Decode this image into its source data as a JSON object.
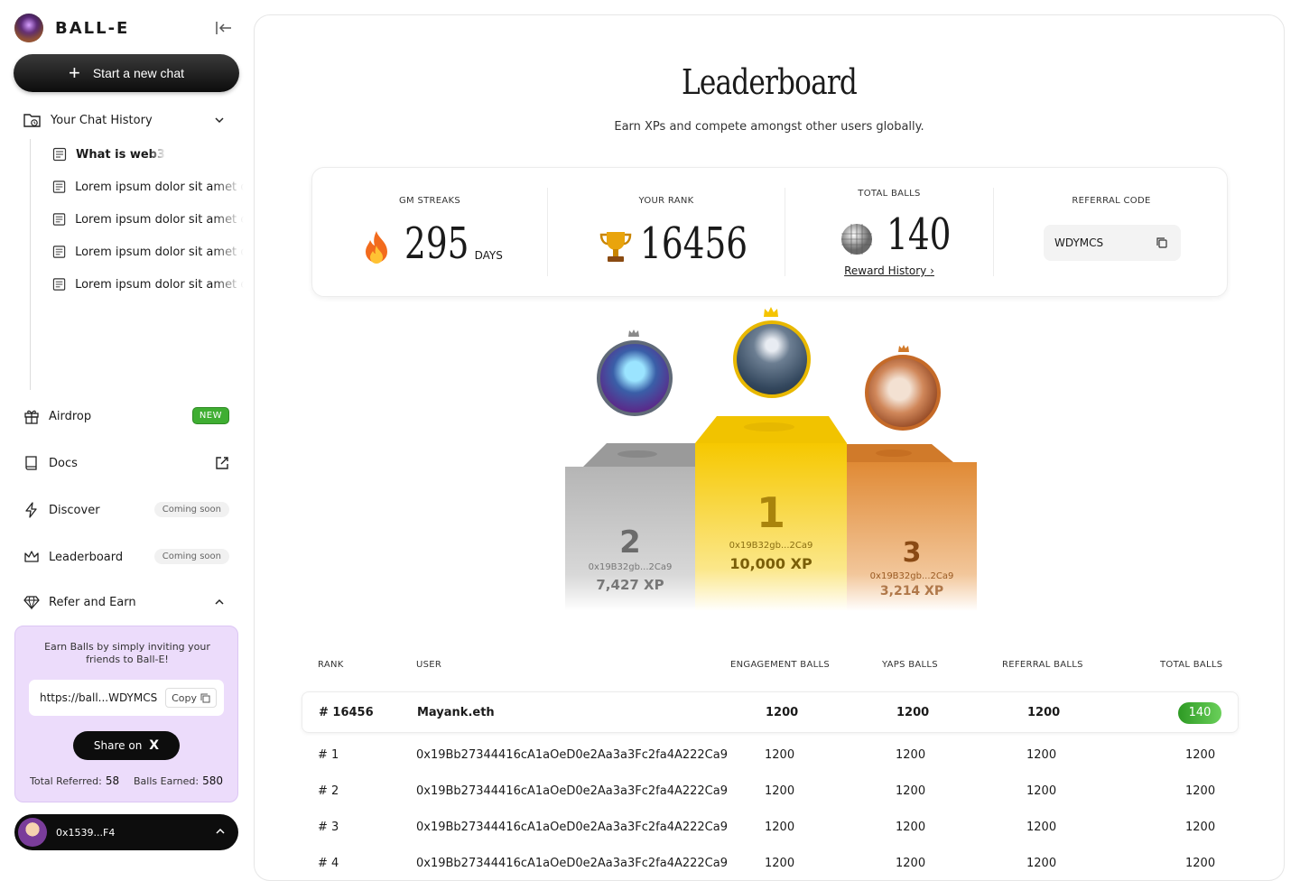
{
  "sidebar": {
    "brand": "BALL-E",
    "new_chat_label": "Start a new chat",
    "history_label": "Your Chat History",
    "history_items": [
      "What is web3",
      "Lorem ipsum dolor sit amet co",
      "Lorem ipsum dolor sit amet co",
      "Lorem ipsum dolor sit amet co",
      "Lorem ipsum dolor sit amet co"
    ],
    "nav": {
      "airdrop": "Airdrop",
      "airdrop_badge": "NEW",
      "docs": "Docs",
      "discover": "Discover",
      "discover_badge": "Coming soon",
      "leaderboard": "Leaderboard",
      "leaderboard_badge": "Coming soon",
      "refer": "Refer and Earn"
    },
    "refer": {
      "text": "Earn Balls by simply inviting your friends to Ball-E!",
      "link": "https://ball...WDYMCS",
      "copy": "Copy",
      "share": "Share on",
      "share_icon": "X",
      "total_referred_label": "Total Referred:",
      "total_referred": "58",
      "balls_earned_label": "Balls Earned:",
      "balls_earned": "580"
    },
    "wallet": "0x1539...F4"
  },
  "main": {
    "title": "Leaderboard",
    "subtitle": "Earn XPs and compete amongst other users globally.",
    "stats": {
      "gm_label": "GM STREAKS",
      "gm_value": "295",
      "gm_unit": "DAYS",
      "rank_label": "YOUR RANK",
      "rank_value": "16456",
      "balls_label": "TOTAL BALLS",
      "balls_value": "140",
      "reward_link": "Reward History",
      "reward_chevron": "›",
      "ref_label": "REFERRAL CODE",
      "ref_code": "WDYMCS"
    },
    "podium": [
      {
        "place": "2",
        "addr": "0x19B32gb...2Ca9",
        "xp": "7,427 XP"
      },
      {
        "place": "1",
        "addr": "0x19B32gb...2Ca9",
        "xp": "10,000 XP"
      },
      {
        "place": "3",
        "addr": "0x19B32gb...2Ca9",
        "xp": "3,214 XP"
      }
    ],
    "table": {
      "headers": [
        "RANK",
        "USER",
        "ENGAGEMENT BALLS",
        "YAPS BALLS",
        "REFERRAL BALLS",
        "TOTAL BALLS"
      ],
      "rows": [
        {
          "rank": "# 16456",
          "user": "Mayank.eth",
          "eng": "1200",
          "yaps": "1200",
          "ref": "1200",
          "total": "140"
        },
        {
          "rank": "# 1",
          "user": "0x19Bb27344416cA1aOeD0e2Aa3a3Fc2fa4A222Ca9",
          "eng": "1200",
          "yaps": "1200",
          "ref": "1200",
          "total": "1200"
        },
        {
          "rank": "# 2",
          "user": "0x19Bb27344416cA1aOeD0e2Aa3a3Fc2fa4A222Ca9",
          "eng": "1200",
          "yaps": "1200",
          "ref": "1200",
          "total": "1200"
        },
        {
          "rank": "# 3",
          "user": "0x19Bb27344416cA1aOeD0e2Aa3a3Fc2fa4A222Ca9",
          "eng": "1200",
          "yaps": "1200",
          "ref": "1200",
          "total": "1200"
        },
        {
          "rank": "# 4",
          "user": "0x19Bb27344416cA1aOeD0e2Aa3a3Fc2fa4A222Ca9",
          "eng": "1200",
          "yaps": "1200",
          "ref": "1200",
          "total": "1200"
        }
      ]
    }
  },
  "colors": {
    "accent_green": "#3fae32",
    "refer_bg": "#ecdcfb",
    "gold": "#f5c400",
    "silver": "#b9b9b9",
    "bronze": "#e39a4c"
  }
}
